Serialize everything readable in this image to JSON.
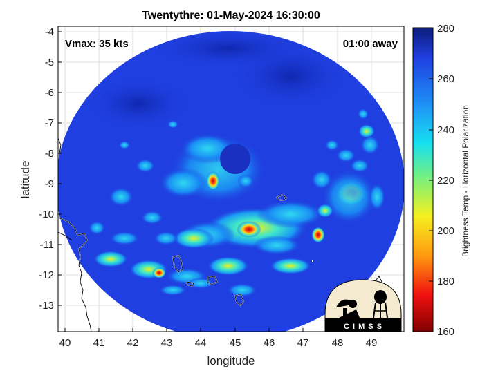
{
  "title": "Twentythre: 01-May-2024 16:30:00",
  "overlay": {
    "vmax": "Vmax: 35 kts",
    "away": "01:00 away",
    "logo_text": "C I M S S"
  },
  "axes": {
    "xlabel": "longitude",
    "ylabel": "latitude",
    "xticks": [
      "40",
      "41",
      "42",
      "43",
      "44",
      "45",
      "46",
      "47",
      "48",
      "49"
    ],
    "yticks": [
      "-4",
      "-5",
      "-6",
      "-7",
      "-8",
      "-9",
      "-10",
      "-11",
      "-12",
      "-13"
    ]
  },
  "colorbar": {
    "label": "Brightness Temp - Horizontal Polarization",
    "ticks": [
      "280",
      "260",
      "240",
      "220",
      "200",
      "180",
      "160"
    ],
    "min": 160,
    "max": 280
  },
  "colors": {
    "swath_base": "#1f3fe0",
    "cold_core": "#a01010",
    "coast": "#ffffff"
  }
}
